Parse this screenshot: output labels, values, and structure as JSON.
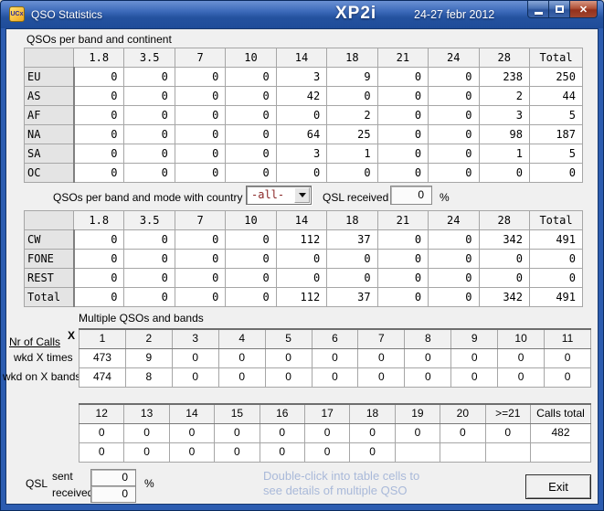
{
  "window": {
    "icon_text": "UCx",
    "title": "QSO Statistics",
    "callsign": "XP2i",
    "date_range": "24-27 febr 2012"
  },
  "continent_section": {
    "label": "QSOs per band and continent",
    "table": {
      "columns": [
        "1.8",
        "3.5",
        "7",
        "10",
        "14",
        "18",
        "21",
        "24",
        "28",
        "Total"
      ],
      "row_headers": [
        "EU",
        "AS",
        "AF",
        "NA",
        "SA",
        "OC"
      ],
      "rows": [
        [
          "0",
          "0",
          "0",
          "0",
          "3",
          "9",
          "0",
          "0",
          "238",
          "250"
        ],
        [
          "0",
          "0",
          "0",
          "0",
          "42",
          "0",
          "0",
          "0",
          "2",
          "44"
        ],
        [
          "0",
          "0",
          "0",
          "0",
          "0",
          "2",
          "0",
          "0",
          "3",
          "5"
        ],
        [
          "0",
          "0",
          "0",
          "0",
          "64",
          "25",
          "0",
          "0",
          "98",
          "187"
        ],
        [
          "0",
          "0",
          "0",
          "0",
          "3",
          "1",
          "0",
          "0",
          "1",
          "5"
        ],
        [
          "0",
          "0",
          "0",
          "0",
          "0",
          "0",
          "0",
          "0",
          "0",
          "0"
        ]
      ]
    }
  },
  "mode_section": {
    "label": "QSOs per band and mode with country",
    "country_value": "-all-",
    "qsl_received_label": "QSL received",
    "qsl_received_value": "0",
    "percent_sign": "%",
    "table": {
      "columns": [
        "1.8",
        "3.5",
        "7",
        "10",
        "14",
        "18",
        "21",
        "24",
        "28",
        "Total"
      ],
      "row_headers": [
        "CW",
        "FONE",
        "REST",
        "Total"
      ],
      "rows": [
        [
          "0",
          "0",
          "0",
          "0",
          "112",
          "37",
          "0",
          "0",
          "342",
          "491"
        ],
        [
          "0",
          "0",
          "0",
          "0",
          "0",
          "0",
          "0",
          "0",
          "0",
          "0"
        ],
        [
          "0",
          "0",
          "0",
          "0",
          "0",
          "0",
          "0",
          "0",
          "0",
          "0"
        ],
        [
          "0",
          "0",
          "0",
          "0",
          "112",
          "37",
          "0",
          "0",
          "342",
          "491"
        ]
      ]
    }
  },
  "multi_section": {
    "label": "Multiple QSOs and bands",
    "axis_label": "Nr of Calls",
    "axis_superscript": "X",
    "row_labels": [
      "wkd X times",
      "wkd on X bands"
    ],
    "table_low": {
      "columns": [
        "1",
        "2",
        "3",
        "4",
        "5",
        "6",
        "7",
        "8",
        "9",
        "10",
        "11"
      ],
      "rows": [
        [
          "473",
          "9",
          "0",
          "0",
          "0",
          "0",
          "0",
          "0",
          "0",
          "0",
          "0"
        ],
        [
          "474",
          "8",
          "0",
          "0",
          "0",
          "0",
          "0",
          "0",
          "0",
          "0",
          "0"
        ]
      ]
    },
    "table_high": {
      "columns": [
        "12",
        "13",
        "14",
        "15",
        "16",
        "17",
        "18",
        "19",
        "20",
        ">=21",
        "Calls total"
      ],
      "rows": [
        [
          "0",
          "0",
          "0",
          "0",
          "0",
          "0",
          "0",
          "0",
          "0",
          "0",
          "482"
        ],
        [
          "0",
          "0",
          "0",
          "0",
          "0",
          "0",
          "0",
          "",
          "",
          "",
          ""
        ]
      ]
    }
  },
  "footer": {
    "qsl_label": "QSL",
    "sent_label": "sent",
    "received_label": "received",
    "sent_value": "0",
    "received_value": "0",
    "percent_sign": "%",
    "hint_lines": [
      "Double-click into table cells to",
      "see details of multiple QSO"
    ],
    "exit_label": "Exit"
  },
  "colors": {
    "titlebar_blue": "#2c5cb0",
    "close_button_red": "#a03a28",
    "client_background": "#f0f0f0",
    "hint_text": "#a9b9d9",
    "country_value_text": "#8a2626",
    "app_icon_yellow": "#f0a81e"
  }
}
